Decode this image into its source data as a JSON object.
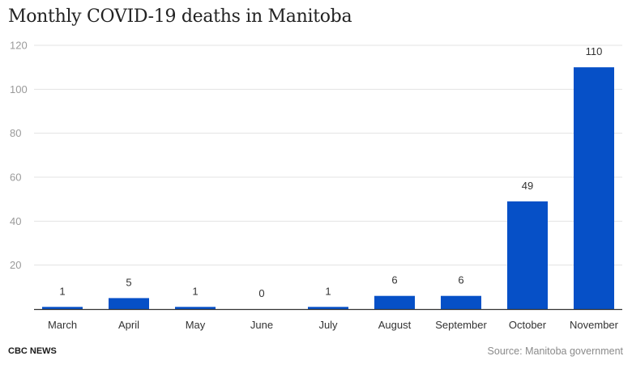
{
  "chart_data": {
    "type": "bar",
    "title": "Monthly COVID-19 deaths in Manitoba",
    "categories": [
      "March",
      "April",
      "May",
      "June",
      "July",
      "August",
      "September",
      "October",
      "November"
    ],
    "values": [
      1,
      5,
      1,
      0,
      1,
      6,
      6,
      49,
      110
    ],
    "data_labels": [
      "1",
      "5",
      "1",
      "0",
      "1",
      "6",
      "6",
      "49",
      "110"
    ],
    "xlabel": "",
    "ylabel": "",
    "ylim": [
      0,
      120
    ],
    "yticks": [
      20,
      40,
      60,
      80,
      100,
      120
    ],
    "grid": true,
    "legend": "none",
    "bar_color": "#0650c7"
  },
  "footer": {
    "brand": "CBC NEWS",
    "source": "Source: Manitoba government"
  }
}
